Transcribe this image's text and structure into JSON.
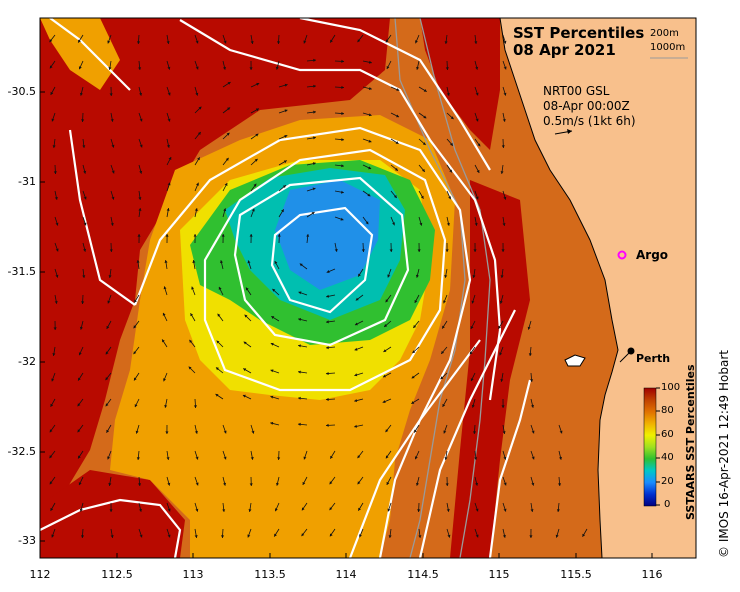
{
  "title_line1": "SST Percentiles",
  "title_line2": "08 Apr 2021",
  "depth_labels": [
    "200m",
    "1000m"
  ],
  "current_info": [
    "NRT00 GSL",
    "08-Apr 00:00Z",
    "0.5m/s (1kt 6h)"
  ],
  "lat_ticks": [
    "-30.5",
    "-31",
    "-31.5",
    "-32",
    "-32.5",
    "-33"
  ],
  "lon_ticks": [
    "112",
    "112.5",
    "113",
    "113.5",
    "114",
    "114.5",
    "115",
    "115.5",
    "116"
  ],
  "colorbar": {
    "label": "SSTAARS SST Percentiles",
    "ticks": [
      "100",
      "80",
      "60",
      "40",
      "20",
      "0"
    ],
    "colors": [
      "#000080",
      "#0030d0",
      "#1a8cff",
      "#00c8c8",
      "#30c030",
      "#a0e020",
      "#f0f000",
      "#f0b000",
      "#e07000",
      "#c04000",
      "#a00000"
    ]
  },
  "places": {
    "argo": "Argo",
    "perth": "Perth"
  },
  "credit": "© IMOS 16-Apr-2021 12:49 Hobart",
  "colors": {
    "land": "#f8c08c",
    "warm_background": "#d46a1a",
    "hot": "#b80a00",
    "contour": "#ffffff",
    "bathymetry": "#9a9a9a",
    "argo_marker": "#ff00ff"
  }
}
